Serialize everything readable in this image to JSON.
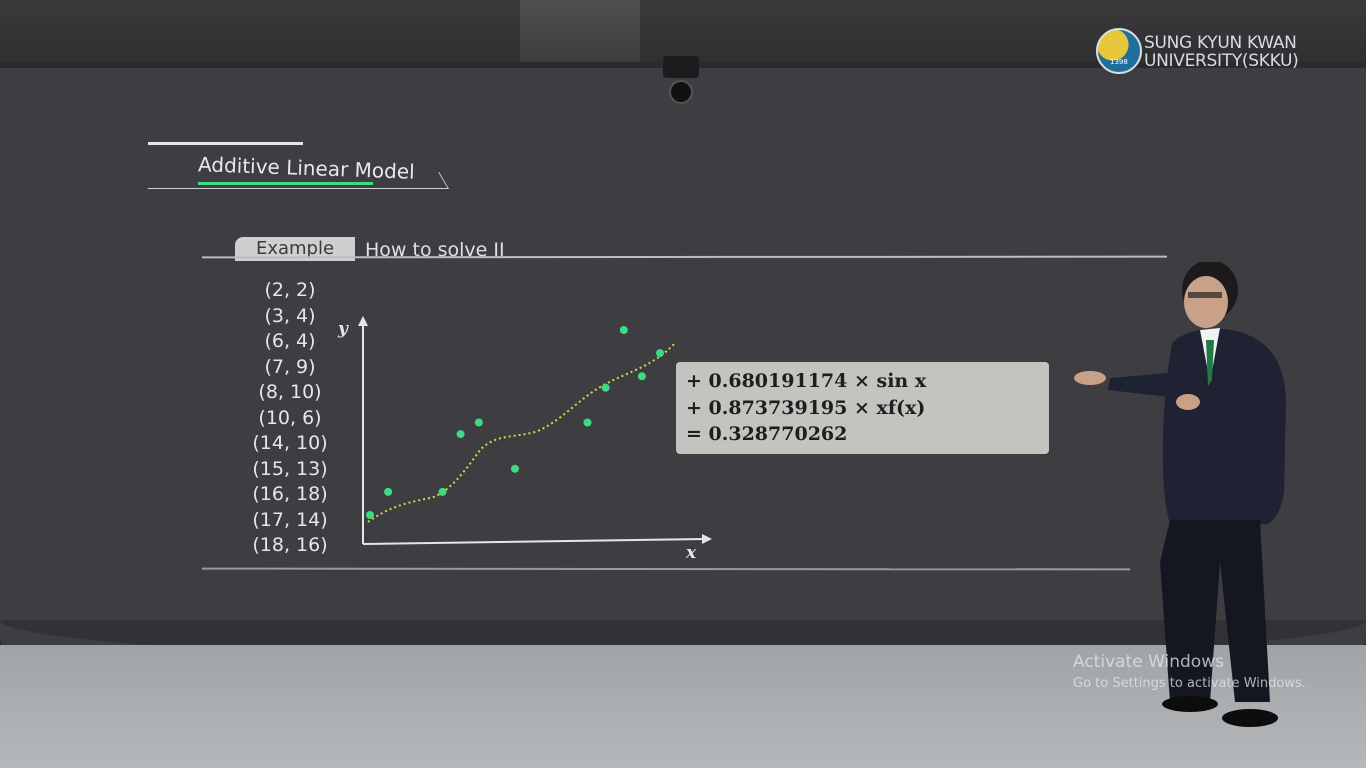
{
  "logo": {
    "year": "1398",
    "line1": "SUNG KYUN KWAN",
    "line2": "UNIVERSITY(SKKU)"
  },
  "section_title": "Additive Linear Model",
  "tab": {
    "badge": "Example",
    "label": "How to solve  II"
  },
  "points": [
    "(2, 2)",
    "(3, 4)",
    "(6, 4)",
    "(7, 9)",
    "(8, 10)",
    "(10, 6)",
    "(14, 10)",
    "(15, 13)",
    "(16, 18)",
    "(17, 14)",
    "(18, 16)"
  ],
  "formula": [
    "+ 0.680191174 × sin x",
    "+  0.873739195 × xf(x)",
    "=  0.328770262"
  ],
  "watermark": {
    "title": "Activate Windows",
    "subtitle": "Go to Settings to activate Windows."
  },
  "colors": {
    "point": "#3ddc84",
    "curve": "#d9d64a"
  },
  "chart_data": {
    "type": "scatter",
    "xlabel": "x",
    "ylabel": "y",
    "x": [
      2,
      3,
      6,
      7,
      8,
      10,
      14,
      15,
      16,
      17,
      18
    ],
    "y": [
      2,
      4,
      4,
      9,
      10,
      6,
      10,
      13,
      18,
      14,
      16
    ],
    "curve": "dotted fitted curve"
  }
}
